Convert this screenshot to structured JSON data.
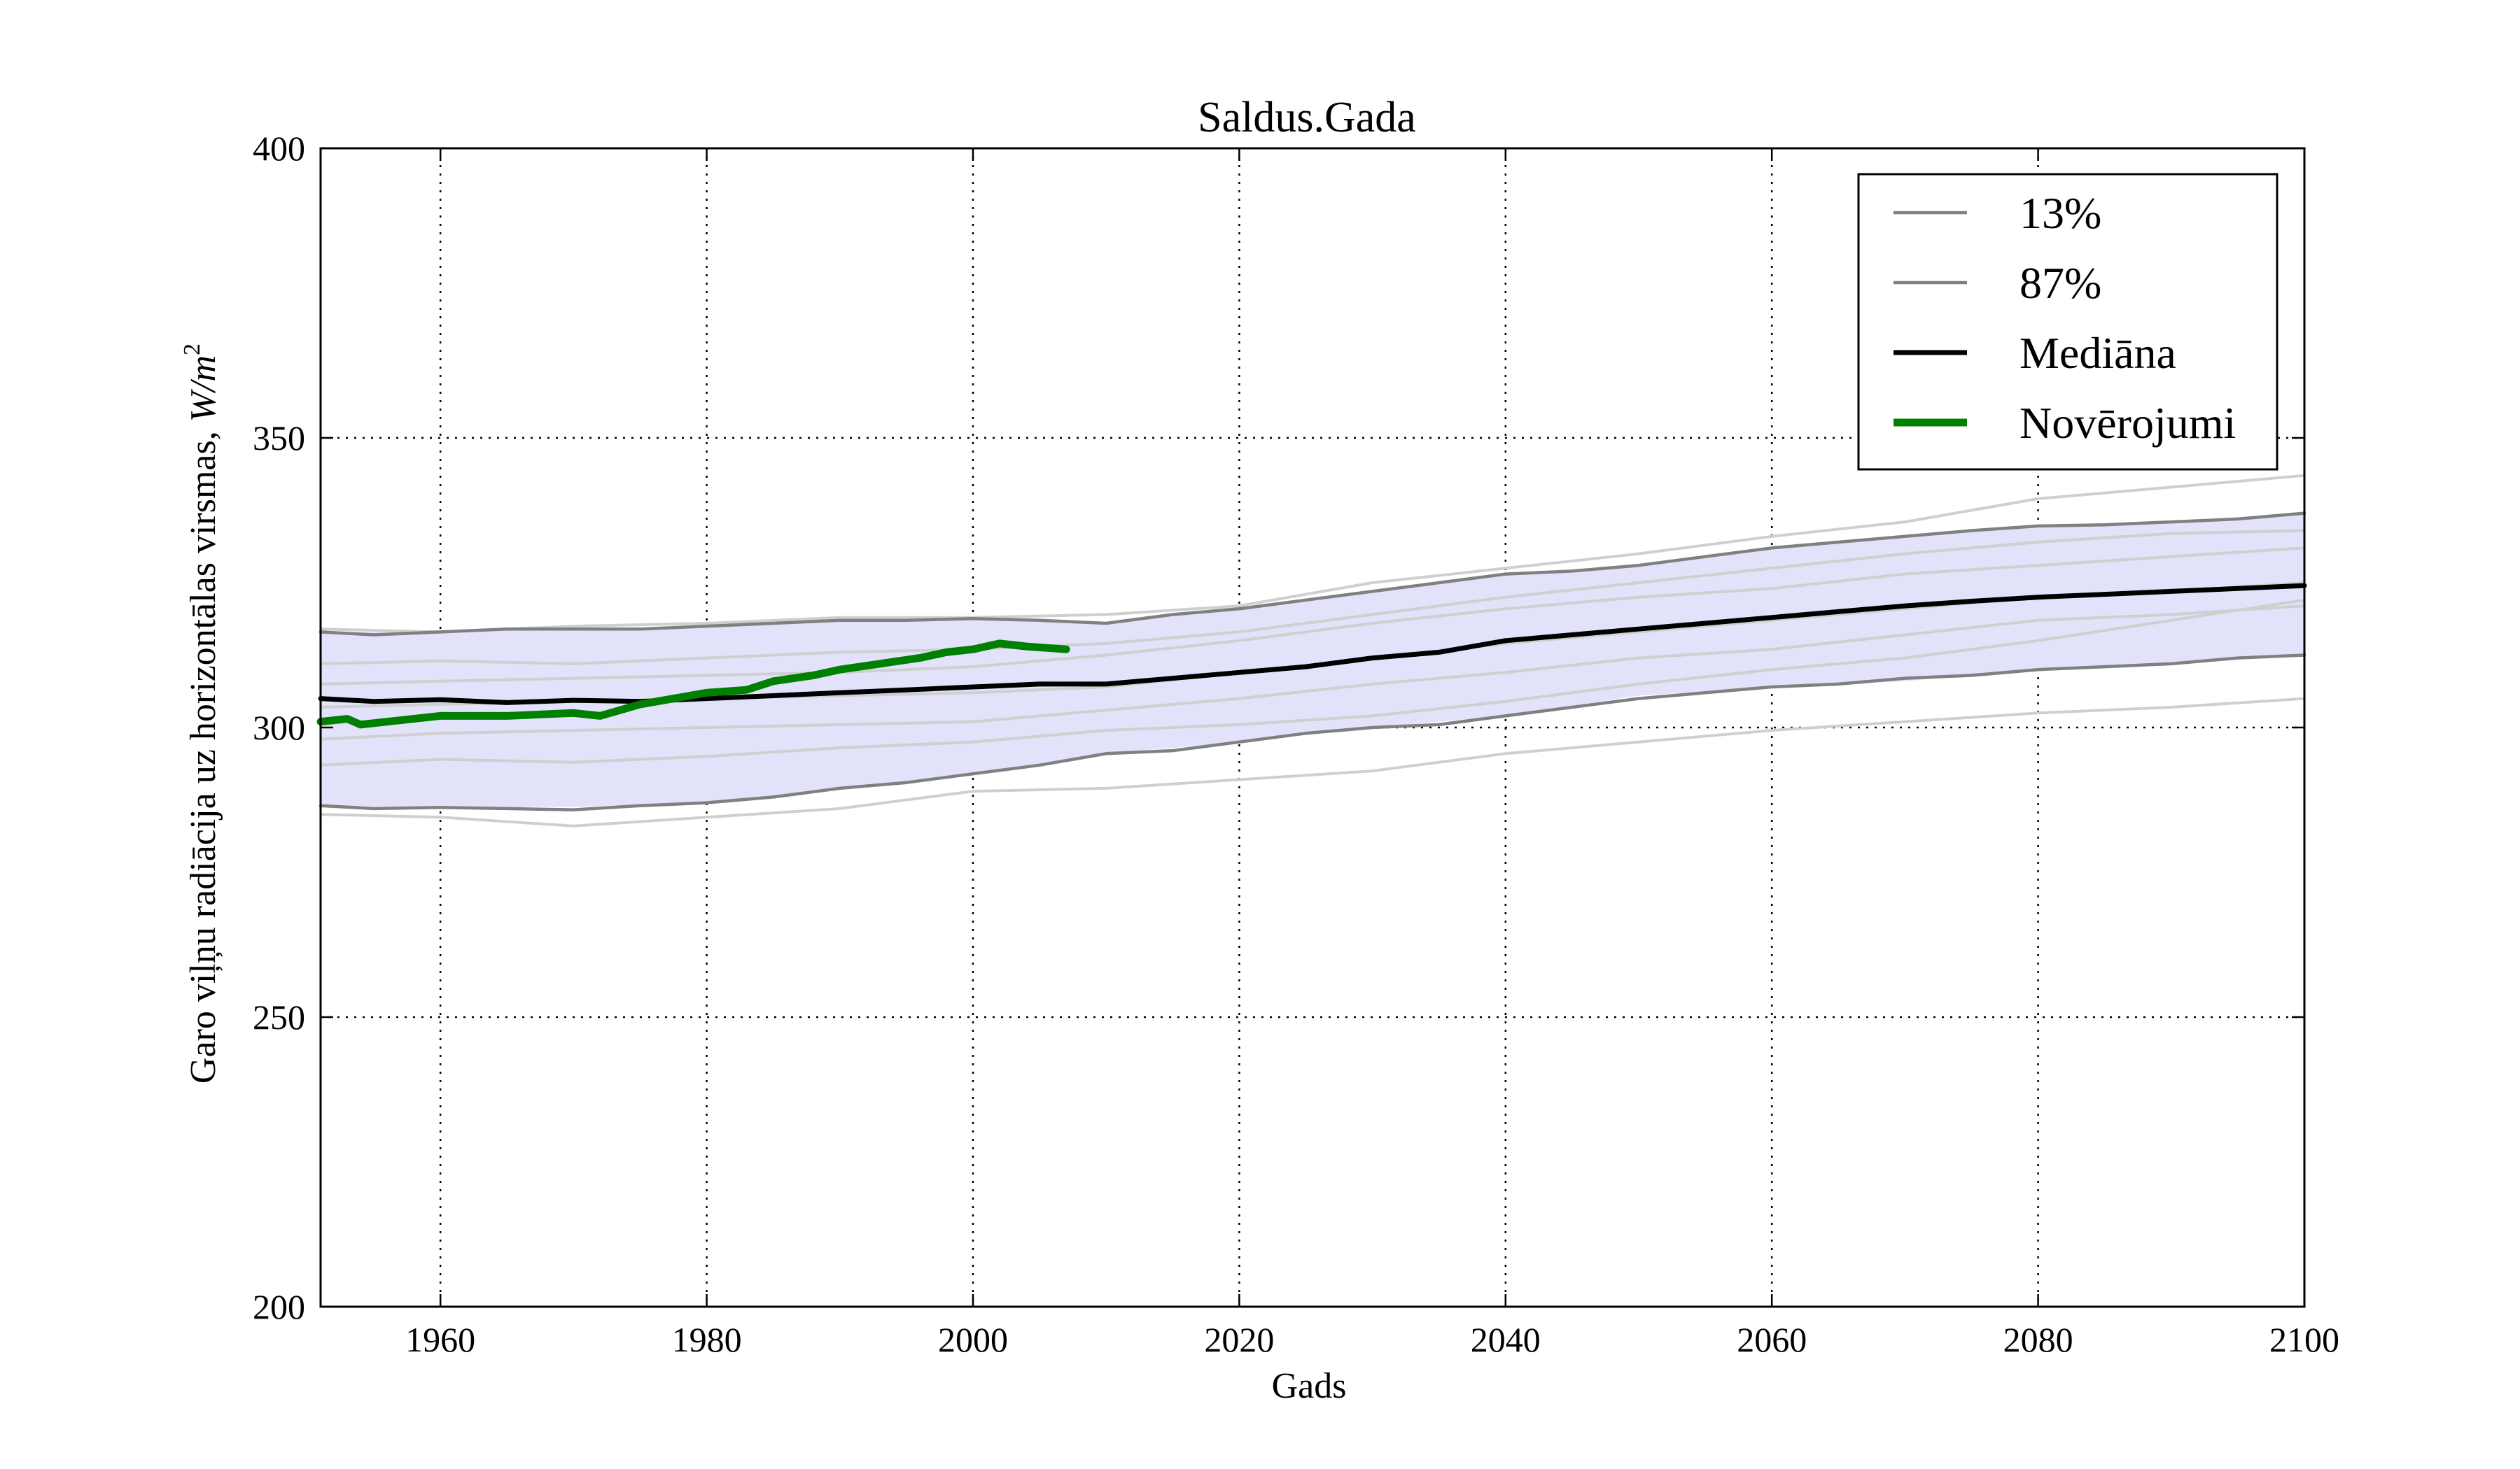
{
  "chart_data": {
    "type": "line",
    "title": "Saldus.Gada",
    "xlabel": "Gads",
    "ylabel": "Garo viļņu radiācija uz horizontālas virsmas, ",
    "ylabel_unit": "W/m",
    "ylabel_unit_sup": "2",
    "xlim": [
      1951,
      2100
    ],
    "ylim": [
      200,
      400
    ],
    "xticks": [
      1960,
      1980,
      2000,
      2020,
      2040,
      2060,
      2080,
      2100
    ],
    "yticks": [
      200,
      250,
      300,
      350,
      400
    ],
    "grid": true,
    "legend_position": "top-right",
    "colors": {
      "band": "#e2e2fb",
      "ensemble_member": "#cfcfcf",
      "percentile": "#808080",
      "median": "#000000",
      "observations": "#008000"
    },
    "band": {
      "x": [
        1951,
        1960,
        1970,
        1980,
        1990,
        2000,
        2010,
        2020,
        2030,
        2040,
        2050,
        2060,
        2070,
        2080,
        2090,
        2100
      ],
      "lower": [
        286.5,
        286.2,
        286.3,
        287.0,
        289.5,
        292.0,
        295.5,
        297.5,
        300.0,
        302.0,
        305.5,
        307.0,
        308.0,
        310.0,
        311.0,
        312.5
      ],
      "upper": [
        316.5,
        316.5,
        317.0,
        317.5,
        318.5,
        318.8,
        318.0,
        320.5,
        323.5,
        326.5,
        328.0,
        331.0,
        333.0,
        334.8,
        335.5,
        337.0
      ]
    },
    "ensemble_members": [
      {
        "x": [
          1951,
          1960,
          1970,
          1980,
          1990,
          2000,
          2010,
          2020,
          2030,
          2040,
          2050,
          2060,
          2070,
          2080,
          2090,
          2100
        ],
        "values": [
          285.0,
          284.5,
          283.0,
          284.5,
          286.0,
          289.0,
          289.5,
          291.0,
          292.5,
          295.5,
          297.5,
          299.5,
          301.0,
          302.5,
          303.5,
          305.0
        ]
      },
      {
        "x": [
          1951,
          1960,
          1970,
          1980,
          1990,
          2000,
          2010,
          2020,
          2030,
          2040,
          2050,
          2060,
          2070,
          2080,
          2090,
          2100
        ],
        "values": [
          293.5,
          294.5,
          294.0,
          295.0,
          296.5,
          297.5,
          299.5,
          300.5,
          302.0,
          304.5,
          307.5,
          310.0,
          312.0,
          315.0,
          318.5,
          322.0
        ]
      },
      {
        "x": [
          1951,
          1960,
          1970,
          1980,
          1990,
          2000,
          2010,
          2020,
          2030,
          2040,
          2050,
          2060,
          2070,
          2080,
          2090,
          2100
        ],
        "values": [
          298.0,
          299.0,
          299.5,
          300.0,
          300.5,
          301.0,
          303.0,
          305.0,
          307.5,
          309.5,
          312.0,
          313.5,
          316.0,
          318.5,
          319.5,
          321.0
        ]
      },
      {
        "x": [
          1951,
          1960,
          1970,
          1980,
          1990,
          2000,
          2010,
          2020,
          2030,
          2040,
          2050,
          2060,
          2070,
          2080,
          2090,
          2100
        ],
        "values": [
          303.5,
          304.0,
          304.5,
          305.0,
          305.5,
          306.0,
          307.0,
          309.5,
          312.0,
          314.5,
          316.5,
          318.5,
          320.5,
          322.5,
          323.5,
          325.0
        ]
      },
      {
        "x": [
          1951,
          1960,
          1970,
          1980,
          1990,
          2000,
          2010,
          2020,
          2030,
          2040,
          2050,
          2060,
          2070,
          2080,
          2090,
          2100
        ],
        "values": [
          307.5,
          308.0,
          308.5,
          309.0,
          309.5,
          310.5,
          312.5,
          315.0,
          318.0,
          320.5,
          322.5,
          324.0,
          326.5,
          328.0,
          329.5,
          331.0
        ]
      },
      {
        "x": [
          1951,
          1960,
          1970,
          1980,
          1990,
          2000,
          2010,
          2020,
          2030,
          2040,
          2050,
          2060,
          2070,
          2080,
          2090,
          2100
        ],
        "values": [
          311.0,
          311.5,
          311.0,
          312.0,
          313.0,
          313.5,
          314.5,
          316.5,
          319.5,
          322.5,
          325.0,
          327.5,
          330.0,
          332.0,
          333.5,
          334.0
        ]
      },
      {
        "x": [
          1951,
          1960,
          1970,
          1980,
          1990,
          2000,
          2010,
          2020,
          2030,
          2040,
          2050,
          2060,
          2070,
          2080,
          2090,
          2100
        ],
        "values": [
          317.0,
          316.5,
          317.5,
          318.0,
          319.0,
          319.0,
          319.5,
          321.0,
          325.0,
          327.5,
          330.0,
          333.0,
          335.5,
          339.5,
          341.5,
          343.5
        ]
      }
    ],
    "series": [
      {
        "name": "13%",
        "style": "percentile",
        "x": [
          1951,
          1955,
          1960,
          1965,
          1970,
          1975,
          1980,
          1985,
          1990,
          1995,
          2000,
          2005,
          2010,
          2015,
          2020,
          2025,
          2030,
          2035,
          2040,
          2045,
          2050,
          2055,
          2060,
          2065,
          2070,
          2075,
          2080,
          2085,
          2090,
          2095,
          2100
        ],
        "values": [
          286.5,
          286.0,
          286.2,
          286.0,
          285.8,
          286.5,
          287.0,
          288.0,
          289.5,
          290.5,
          292.0,
          293.5,
          295.5,
          296.0,
          297.5,
          299.0,
          300.0,
          300.5,
          302.0,
          303.5,
          305.0,
          306.0,
          307.0,
          307.5,
          308.5,
          309.0,
          310.0,
          310.5,
          311.0,
          312.0,
          312.5
        ]
      },
      {
        "name": "87%",
        "style": "percentile",
        "x": [
          1951,
          1955,
          1960,
          1965,
          1970,
          1975,
          1980,
          1985,
          1990,
          1995,
          2000,
          2005,
          2010,
          2015,
          2020,
          2025,
          2030,
          2035,
          2040,
          2045,
          2050,
          2055,
          2060,
          2065,
          2070,
          2075,
          2080,
          2085,
          2090,
          2095,
          2100
        ],
        "values": [
          316.5,
          316.0,
          316.5,
          317.0,
          317.0,
          317.0,
          317.5,
          318.0,
          318.5,
          318.5,
          318.8,
          318.5,
          318.0,
          319.5,
          320.5,
          322.0,
          323.5,
          325.0,
          326.5,
          327.0,
          328.0,
          329.5,
          331.0,
          332.0,
          333.0,
          334.0,
          334.8,
          335.0,
          335.5,
          336.0,
          337.0
        ]
      },
      {
        "name": "Mediāna",
        "style": "median",
        "x": [
          1951,
          1955,
          1960,
          1965,
          1970,
          1975,
          1980,
          1985,
          1990,
          1995,
          2000,
          2005,
          2010,
          2015,
          2020,
          2025,
          2030,
          2035,
          2040,
          2045,
          2050,
          2055,
          2060,
          2065,
          2070,
          2075,
          2080,
          2085,
          2090,
          2095,
          2100
        ],
        "values": [
          305.0,
          304.5,
          304.8,
          304.3,
          304.7,
          304.5,
          305.0,
          305.5,
          306.0,
          306.5,
          307.0,
          307.5,
          307.5,
          308.5,
          309.5,
          310.5,
          312.0,
          313.0,
          315.0,
          316.0,
          317.0,
          318.0,
          319.0,
          320.0,
          321.0,
          321.8,
          322.5,
          323.0,
          323.5,
          324.0,
          324.5
        ]
      },
      {
        "name": "Novērojumi",
        "style": "observations",
        "x": [
          1951,
          1953,
          1954,
          1956,
          1960,
          1965,
          1970,
          1972,
          1975,
          1980,
          1983,
          1985,
          1988,
          1990,
          1993,
          1996,
          1998,
          2000,
          2002,
          2004,
          2007
        ],
        "values": [
          301.0,
          301.5,
          300.5,
          301.0,
          302.0,
          302.0,
          302.5,
          302.0,
          304.0,
          306.0,
          306.5,
          308.0,
          309.0,
          310.0,
          311.0,
          312.0,
          313.0,
          313.5,
          314.5,
          314.0,
          313.5
        ]
      }
    ]
  }
}
